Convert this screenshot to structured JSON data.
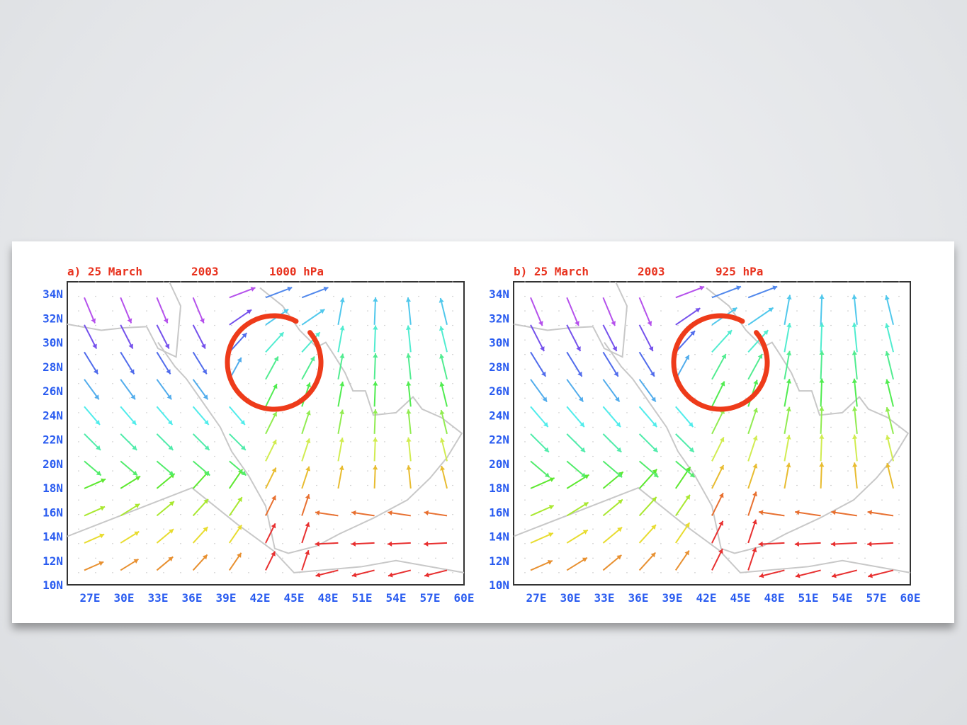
{
  "panels": [
    {
      "title": {
        "date": "a) 25 March",
        "year": "2003",
        "level": "1000 hPa"
      },
      "lat_labels": [
        "34N",
        "32N",
        "30N",
        "28N",
        "26N",
        "24N",
        "22N",
        "20N",
        "18N",
        "16N",
        "14N",
        "12N",
        "10N"
      ],
      "lon_labels": [
        "27E",
        "30E",
        "33E",
        "36E",
        "39E",
        "42E",
        "45E",
        "48E",
        "51E",
        "54E",
        "57E",
        "60E"
      ]
    },
    {
      "title": {
        "date": "b) 25 March",
        "year": "2003",
        "level": "925 hPa"
      },
      "lat_labels": [
        "34N",
        "32N",
        "30N",
        "28N",
        "26N",
        "24N",
        "22N",
        "20N",
        "18N",
        "16N",
        "14N",
        "12N",
        "10N"
      ],
      "lon_labels": [
        "27E",
        "30E",
        "33E",
        "36E",
        "39E",
        "42E",
        "45E",
        "48E",
        "51E",
        "54E",
        "57E",
        "60E"
      ]
    }
  ]
}
